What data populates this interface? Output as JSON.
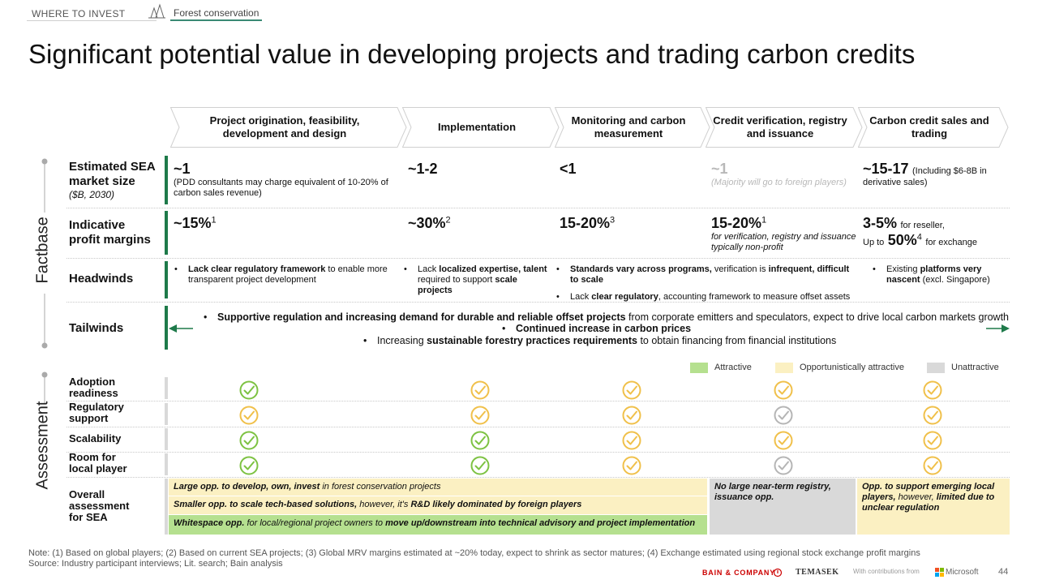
{
  "nav": {
    "section": "WHERE TO INVEST",
    "topic": "Forest conservation"
  },
  "title": "Significant potential value in developing projects and trading carbon credits",
  "columns": [
    "Project origination, feasibility, development and design",
    "Implementation",
    "Monitoring and carbon measurement",
    "Credit verification, registry and issuance",
    "Carbon credit sales and trading"
  ],
  "sections": {
    "factbase": "Factbase",
    "assessment": "Assessment"
  },
  "rows": {
    "market_size": {
      "label_line1": "Estimated SEA",
      "label_line2": "market size",
      "unit": "($B, 2030)"
    },
    "margins": {
      "label_line1": "Indicative",
      "label_line2": "profit margins"
    },
    "headwinds": {
      "label": "Headwinds"
    },
    "tailwinds": {
      "label": "Tailwinds"
    }
  },
  "market_size": {
    "c1_value": "~1",
    "c1_note": "(PDD consultants may charge equivalent of 10-20% of carbon sales revenue)",
    "c2_value": "~1-2",
    "c3_value": "<1",
    "c4_value": "~1",
    "c4_note": "(Majority will go to foreign players)",
    "c5_value": "~15-17",
    "c5_note_a": "(Including $6-8B in",
    "c5_note_b": "derivative sales)"
  },
  "margins": {
    "c1_value": "~15%",
    "c1_sup": "1",
    "c2_value": "~30%",
    "c2_sup": "2",
    "c3_value": "15-20%",
    "c3_sup": "3",
    "c4_value": "15-20%",
    "c4_sup": "1",
    "c4_note": "for verification, registry and issuance typically non-profit",
    "c5_value": "3-5%",
    "c5_note_a": "for reseller,",
    "c5_prefix": "Up to",
    "c5_value2": "50%",
    "c5_sup": "4",
    "c5_note_b": "for exchange"
  },
  "headwinds": {
    "c1_bold": "Lack clear regulatory framework",
    "c1_rest": " to enable more transparent project development",
    "c2_pre": "Lack ",
    "c2_bold1": "localized expertise, talent",
    "c2_mid": " required to support ",
    "c2_bold2": "scale projects",
    "c3a_bold1": "Standards vary across programs,",
    "c3a_mid": " verification is ",
    "c3a_bold2": "infrequent, difficult to scale",
    "c3b_pre": "Lack ",
    "c3b_bold": "clear regulatory",
    "c3b_rest": ", accounting framework to measure offset assets",
    "c5_pre": "Existing ",
    "c5_bold": "platforms very nascent",
    "c5_rest": " (excl. Singapore)"
  },
  "tailwinds": {
    "t1_bold": "Supportive regulation and increasing demand for durable and reliable offset projects",
    "t1_rest": " from corporate emitters and speculators, expect to drive local carbon markets growth",
    "t2_bold": "Continued increase in carbon prices",
    "t3_pre": "Increasing ",
    "t3_bold": "sustainable forestry practices requirements",
    "t3_rest": " to obtain financing from financial institutions"
  },
  "legend": {
    "attractive": "Attractive",
    "opportunistic": "Opportunistically attractive",
    "unattractive": "Unattractive",
    "colors": {
      "attractive": "#b5e08f",
      "opportunistic": "#fbf0c2",
      "unattractive": "#d9d9d9"
    }
  },
  "assessment_rows": [
    {
      "label_line1": "Adoption",
      "label_line2": "readiness",
      "ratings": [
        "attractive",
        "opportunistic",
        "opportunistic",
        "opportunistic",
        "opportunistic"
      ]
    },
    {
      "label_line1": "Regulatory",
      "label_line2": "support",
      "ratings": [
        "opportunistic",
        "opportunistic",
        "opportunistic",
        "unattractive",
        "opportunistic"
      ]
    },
    {
      "label_line1": "Scalability",
      "label_line2": "",
      "ratings": [
        "attractive",
        "attractive",
        "opportunistic",
        "opportunistic",
        "opportunistic"
      ]
    },
    {
      "label_line1": "Room for",
      "label_line2": "local player",
      "ratings": [
        "attractive",
        "attractive",
        "opportunistic",
        "unattractive",
        "opportunistic"
      ]
    }
  ],
  "icon_colors": {
    "attractive": "#7dc242",
    "opportunistic": "#f0c04a",
    "unattractive": "#b5b5b5"
  },
  "overall": {
    "label_line1": "Overall",
    "label_line2": "assessment",
    "label_line3": "for SEA",
    "l1_bold": "Large opp. to develop, own, invest",
    "l1_rest": " in forest conservation projects",
    "l2_bold": "Smaller opp. to scale tech-based solutions,",
    "l2_mid": " however, it's ",
    "l2_bold2": "R&D likely dominated by foreign players",
    "l3_bold": "Whitespace opp.",
    "l3_mid": " for local/regional project owners to ",
    "l3_bold2": "move up/downstream into technical advisory and project implementation",
    "c4_text": "No large near-term registry, issuance opp.",
    "c5_bold1": "Opp. to support emerging local players,",
    "c5_mid": " however, ",
    "c5_bold2": "limited due to unclear regulation"
  },
  "notes": {
    "note": "Note: (1) Based on global players; (2) Based on current SEA projects; (3) Global MRV margins estimated at ~20% today, expect to shrink as sector matures; (4) Exchange estimated using regional stock exchange profit margins",
    "source": "Source: Industry participant interviews; Lit. search; Bain analysis"
  },
  "footer": {
    "bain": "BAIN & COMPANY",
    "temasek": "TEMASEK",
    "contrib": "With contributions from",
    "microsoft": "Microsoft",
    "page": "44"
  }
}
